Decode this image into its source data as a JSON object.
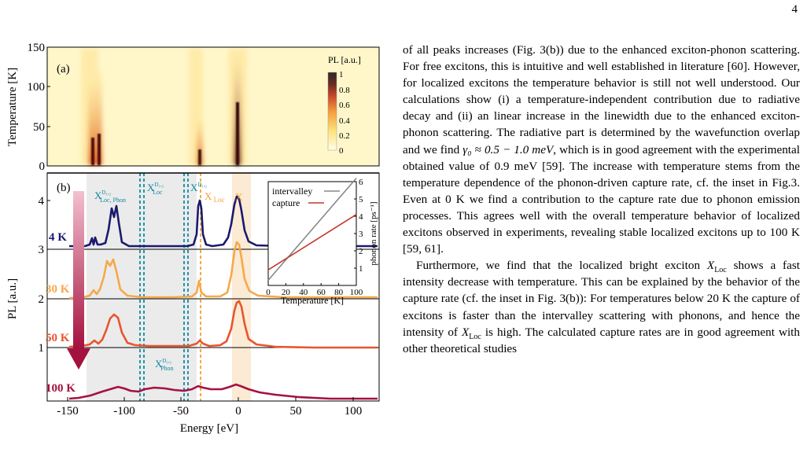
{
  "page": {
    "number": "4"
  },
  "figure": {
    "panel_a": {
      "label": "(a)",
      "ylabel": "Temperature [K]",
      "yticks": [
        "0",
        "50",
        "100",
        "150"
      ],
      "colorbar": {
        "title": "PL [a.u.]",
        "ticks": [
          "0",
          "0.2",
          "0.4",
          "0.6",
          "0.8",
          "1"
        ]
      }
    },
    "panel_b": {
      "label": "(b)",
      "ylabel": "PL [a.u.]",
      "xlabel": "Energy [eV]",
      "xticks": [
        "-150",
        "-100",
        "-50",
        "0",
        "50",
        "100"
      ],
      "yticks": [
        "1",
        "2",
        "3",
        "4"
      ],
      "temperature_labels": [
        {
          "text": "4 K",
          "color": "#1a1a6e"
        },
        {
          "text": "30 K",
          "color": "#f5a94a"
        },
        {
          "text": "50 K",
          "color": "#e8552e"
        },
        {
          "text": "100 K",
          "color": "#a4123f"
        }
      ],
      "peak_labels": {
        "x_loc_phon": "X",
        "x_loc_phon_sup": "D₁,₂",
        "x_loc_phon_sub": "Loc, Phon",
        "x_loc_d": "X",
        "x_loc_d_sup": "D₁,₂",
        "x_loc_d_sub": "Loc",
        "x_d": "X",
        "x_d_sup": "D₁,₂",
        "x_loc": "X",
        "x_loc_sub": " Loc",
        "x": "X",
        "x_phon": "X",
        "x_phon_sup": "D₁,₂",
        "x_phon_sub": "Phon"
      },
      "inset": {
        "legend": [
          "intervalley",
          "capture"
        ],
        "xlabel": "Temperature [K]",
        "ylabel": "phonon rate [ps⁻¹]",
        "xticks": [
          "0",
          "20",
          "40",
          "60",
          "80",
          "100"
        ],
        "yticks": [
          "1",
          "2",
          "3",
          "4",
          "5",
          "6"
        ]
      },
      "colors": {
        "arrow": "#a4123f",
        "teal_dashed": "#0f8aa0",
        "orange_dashed": "#f0a030"
      }
    }
  },
  "chart_data": {
    "type": "line",
    "xlabel": "Temperature [K]",
    "ylabel": "phonon rate [ps⁻¹]",
    "xlim": [
      0,
      100
    ],
    "ylim": [
      0,
      6
    ],
    "series": [
      {
        "name": "intervalley",
        "color": "#888888",
        "x": [
          0,
          100
        ],
        "y": [
          0.3,
          6.2
        ]
      },
      {
        "name": "capture",
        "color": "#c0392b",
        "x": [
          0,
          100
        ],
        "y": [
          0.9,
          4.1
        ]
      }
    ]
  },
  "text": {
    "p1_a": "of all peaks increases (Fig. 3(b)) due to the enhanced exciton-phonon scattering. For free excitons, this is intuitive and well established in literature [60]. However, for localized excitons the temperature behavior is still not well understood. Our calculations show (i) a temperature-independent contribution due to radiative decay and (ii) an linear increase in the linewidth due to the enhanced exciton-phonon scattering. The radiative part is determined by the wavefunction overlap and we find ",
    "p1_gamma": "γ₀ ≈ 0.5 − 1.0 meV",
    "p1_b": ", which is in good agreement with the experimental obtained value of 0.9 meV [59]. The increase with temperature stems from the temperature dependence of the phonon-driven capture rate, cf. the inset in Fig.3. Even at 0 K we find a contribution to the capture rate due to phonon emission processes. This agrees well with the overall temperature behavior of localized excitons observed in experiments, revealing stable localized excitons up to 100 K [59, 61].",
    "p2_a": "Furthermore, we find that the localized bright exciton ",
    "p2_x": "X",
    "p2_sub": "Loc",
    "p2_b": " shows a fast intensity decrease with temperature. This can be explained by the behavior of the capture rate (cf. the inset in Fig. 3(b)): For temperatures below 20 K the capture of excitons is faster than the intervalley scattering with phonons, and hence the intensity of ",
    "p2_c": " is high. The calculated capture rates are in good agreement with other theoretical studies"
  }
}
